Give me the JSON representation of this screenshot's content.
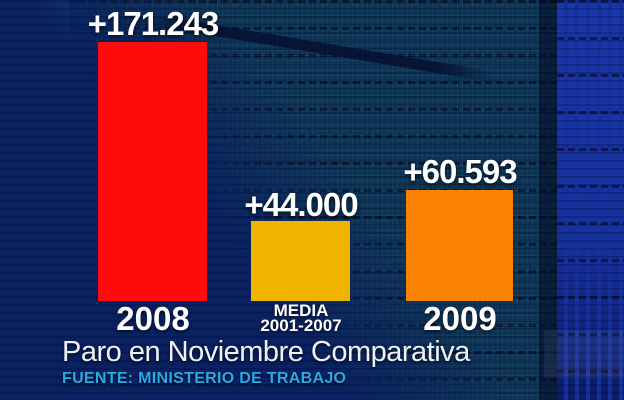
{
  "chart_data": {
    "type": "bar",
    "categories": [
      "2008",
      "MEDIA 2001-2007",
      "2009"
    ],
    "values": [
      171243,
      44000,
      60593
    ],
    "value_labels": [
      "+171.243",
      "+44.000",
      "+60.593"
    ],
    "bar_colors": [
      "#fe0b0b",
      "#f0b400",
      "#f98300"
    ],
    "title": "Paro en Noviembre Comparativa",
    "source": "FUENTE: MINISTERIO DE TRABAJO",
    "xlabel": "",
    "ylabel": "",
    "legend": false,
    "grid": false,
    "note": "bars drawn as displayed on screen, not strictly to value scale"
  },
  "bars": [
    {
      "value_label": "+171.243",
      "category_lines": [
        "2008"
      ],
      "color": "#fe0b0b"
    },
    {
      "value_label": "+44.000",
      "category_lines": [
        "MEDIA",
        "2001-2007"
      ],
      "color": "#f0b400"
    },
    {
      "value_label": "+60.593",
      "category_lines": [
        "2009"
      ],
      "color": "#f98300"
    }
  ],
  "footer": {
    "title": "Paro en Noviembre Comparativa",
    "source": "FUENTE: MINISTERIO DE TRABAJO",
    "source_color": "#2aa9e4"
  },
  "background_colors": {
    "base_navy": "#0a2162",
    "steel_blue": "#1d5e92",
    "teal_grid": "#0c3354",
    "royal_blue": "#16309c",
    "left_strip": "#03081f"
  }
}
